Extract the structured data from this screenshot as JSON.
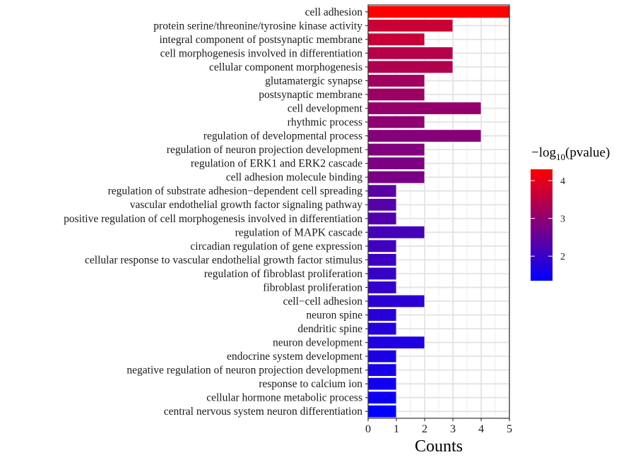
{
  "chart_data": {
    "type": "bar",
    "orientation": "horizontal",
    "title": "",
    "xlabel": "Counts",
    "ylabel": "",
    "xlim": [
      0,
      5
    ],
    "xticks": [
      "0",
      "1",
      "2",
      "3",
      "4",
      "5"
    ],
    "grid": true,
    "legend": {
      "title_prefix": "−log",
      "title_sub": "10",
      "title_suffix": "(pvalue)",
      "placement": "right",
      "type": "colorbar",
      "range": [
        1.35,
        4.3
      ],
      "ticks": [
        "2",
        "3",
        "4"
      ],
      "tick_values": [
        2,
        3,
        4
      ],
      "color_low": "#0000FF",
      "color_high": "#FF0000"
    },
    "categories": [
      "cell adhesion",
      "protein serine/threonine/tyrosine kinase activity",
      "integral component of postsynaptic membrane",
      "cell morphogenesis involved in differentiation",
      "cellular component morphogenesis",
      "glutamatergic synapse",
      "postsynaptic membrane",
      "cell development",
      "rhythmic process",
      "regulation of developmental process",
      "regulation of neuron projection development",
      "regulation of ERK1 and ERK2 cascade",
      "cell adhesion molecule binding",
      "regulation of substrate adhesion−dependent cell spreading",
      "vascular endothelial growth factor signaling pathway",
      "positive regulation of cell morphogenesis involved in differentiation",
      "regulation of MAPK cascade",
      "circadian regulation of gene expression",
      "cellular response to vascular endothelial growth factor stimulus",
      "regulation of fibroblast proliferation",
      "fibroblast proliferation",
      "cell−cell adhesion",
      "neuron spine",
      "dendritic spine",
      "neuron development",
      "endocrine system development",
      "negative regulation of neuron projection development",
      "response to calcium ion",
      "cellular hormone metabolic process",
      "central nervous system neuron differentiation"
    ],
    "values": [
      5,
      3,
      2,
      3,
      3,
      2,
      2,
      4,
      2,
      4,
      2,
      2,
      2,
      1,
      1,
      1,
      2,
      1,
      1,
      1,
      1,
      2,
      1,
      1,
      2,
      1,
      1,
      1,
      1,
      1
    ],
    "neg_log10_pvalue": [
      4.3,
      3.7,
      3.65,
      3.45,
      3.4,
      3.2,
      3.15,
      3.05,
      3.0,
      2.9,
      2.85,
      2.8,
      2.75,
      2.4,
      2.35,
      2.3,
      2.15,
      2.1,
      2.05,
      2.0,
      1.95,
      1.85,
      1.8,
      1.75,
      1.7,
      1.65,
      1.6,
      1.55,
      1.5,
      1.35
    ]
  }
}
